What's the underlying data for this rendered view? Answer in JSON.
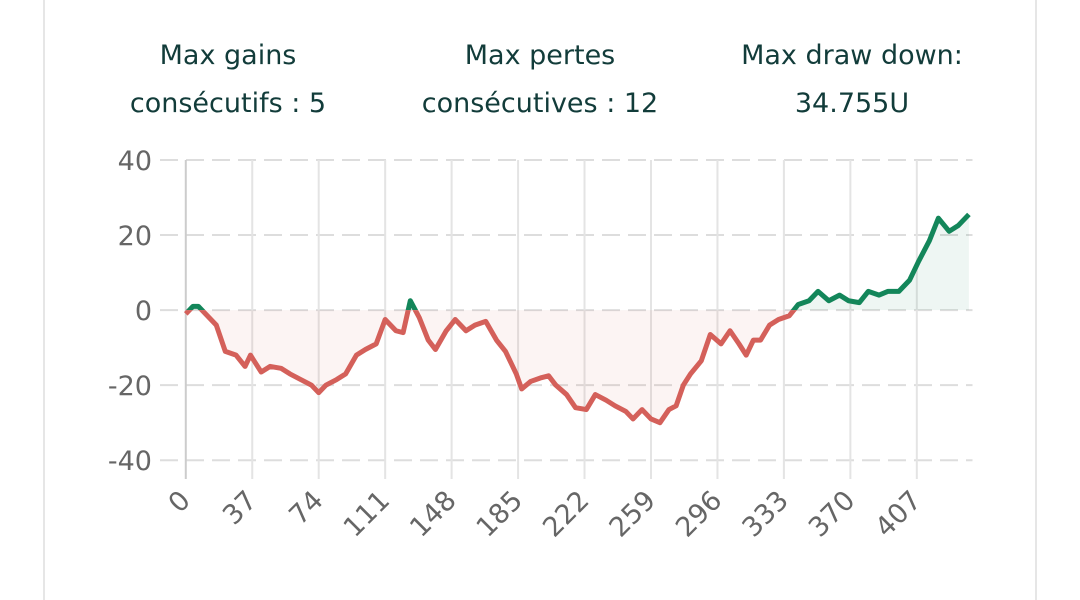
{
  "stats": [
    {
      "lines": [
        "Max gains",
        "consécutifs : 5"
      ]
    },
    {
      "lines": [
        "Max pertes",
        "consécutives : 12"
      ]
    },
    {
      "lines": [
        "Max draw down:",
        "34.755U"
      ]
    }
  ],
  "chart_data": {
    "type": "line",
    "x": [
      0,
      4,
      7,
      11,
      17,
      22,
      28,
      33,
      36,
      42,
      47,
      53,
      58,
      64,
      70,
      74,
      78,
      84,
      89,
      95,
      100,
      106,
      111,
      117,
      121,
      125,
      130,
      135,
      139,
      145,
      150,
      156,
      161,
      167,
      173,
      178,
      184,
      187,
      192,
      198,
      202,
      206,
      212,
      217,
      223,
      228,
      234,
      239,
      245,
      249,
      254,
      259,
      264,
      269,
      273,
      277,
      281,
      287,
      292,
      298,
      303,
      308,
      312,
      316,
      320,
      325,
      330,
      336,
      341,
      347,
      352,
      358,
      364,
      369,
      375,
      380,
      386,
      391,
      397,
      403,
      408,
      414,
      419,
      425,
      430,
      436
    ],
    "values": [
      -1,
      1,
      1,
      -1,
      -4,
      -11,
      -12,
      -15,
      -12,
      -16.5,
      -15,
      -15.5,
      -17,
      -18.5,
      -20,
      -22,
      -20,
      -18.5,
      -17,
      -12,
      -10.5,
      -9,
      -2.5,
      -5.5,
      -6,
      2.5,
      -2,
      -8,
      -10.5,
      -5.5,
      -2.5,
      -5.5,
      -4,
      -3,
      -8,
      -11,
      -17,
      -21,
      -19,
      -18,
      -17.5,
      -20,
      -22.5,
      -26,
      -26.5,
      -22.5,
      -24,
      -25.5,
      -27,
      -29,
      -26.5,
      -29,
      -30,
      -26.5,
      -25.5,
      -20,
      -17,
      -13.5,
      -6.5,
      -9,
      -5.5,
      -9,
      -12,
      -8,
      -8,
      -4,
      -2.5,
      -1.5,
      1.5,
      2.5,
      5,
      2.5,
      4,
      2.5,
      2,
      5,
      4,
      5,
      5,
      8,
      13,
      18.5,
      24.5,
      21,
      22.5,
      25.5
    ],
    "positive_color": "#13865a",
    "negative_color": "#d4605a",
    "xlim": [
      -3,
      438
    ],
    "ylim": [
      -45,
      40
    ],
    "xticks": [
      0,
      37,
      74,
      111,
      148,
      185,
      222,
      259,
      296,
      333,
      370,
      407
    ],
    "yticks": [
      40,
      20,
      0,
      -20,
      -40
    ],
    "grid": true
  }
}
